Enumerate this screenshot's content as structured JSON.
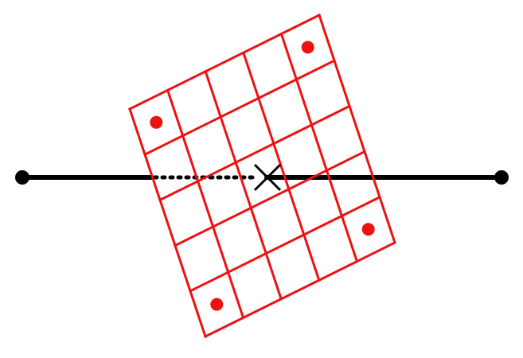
{
  "diagram": {
    "colors": {
      "grid": "#ee1111",
      "marker": "#ee1111",
      "line": "#000000",
      "background": "#ffffff"
    },
    "grid": {
      "columns": 5,
      "rows": 5,
      "marked_cells": [
        {
          "col": 0,
          "row": 0
        },
        {
          "col": 4,
          "row": 4
        },
        {
          "col": 0,
          "row": 4
        },
        {
          "col": 4,
          "row": 0
        }
      ]
    },
    "center_mark": "cross-icon",
    "segment_style": [
      "solid",
      "dotted",
      "solid"
    ]
  }
}
